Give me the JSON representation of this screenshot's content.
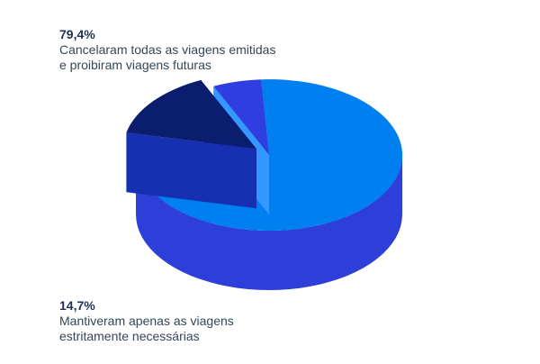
{
  "chart_data": {
    "type": "pie",
    "style": "3d",
    "slices": [
      {
        "pct": "79,4%",
        "value": 79.4,
        "line1": "Cancelaram todas as viagens emitidas",
        "line2": "e proibiram viagens futuras",
        "color": "#0080f0",
        "side_color": "#2d3fd8"
      },
      {
        "pct": "14,7%",
        "value": 14.7,
        "line1": "Mantiveram apenas as viagens",
        "line2": "estritamente necessárias",
        "color": "#0b1d6e",
        "side_color": "#1530b0"
      },
      {
        "value": 5.9,
        "color": "#2e3ee0",
        "side_color": "#3399ff"
      }
    ]
  }
}
